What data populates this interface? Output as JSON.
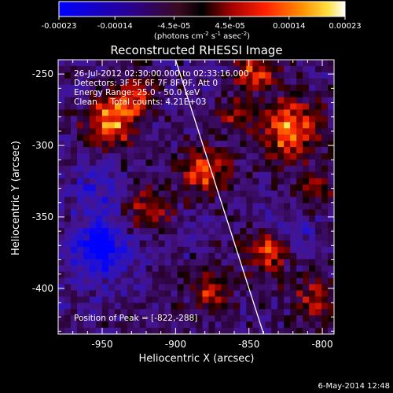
{
  "title": "Reconstructed RHESSI Image",
  "info_lines": [
    "26-Jul-2012 02:30:00.000 to 02:33:16.000",
    "Detectors: 3F 5F 6F 7F 8F 9F, Att 0",
    "Energy Range: 25.0 - 50.0 keV",
    "Clean     Total counts: 4.21E+03"
  ],
  "peak_label": "Position of Peak = [-822,-288]",
  "timestamp": "6-May-2014 12:48",
  "colorbar": {
    "tick_labels": [
      "-0.00023",
      "-0.00014",
      "-4.5e-05",
      "4.5e-05",
      "0.00014",
      "0.00023"
    ],
    "tick_values": [
      -0.00023,
      -0.00014,
      -4.5e-05,
      4.5e-05,
      0.00014,
      0.00023
    ],
    "unit_main": "(photons cm",
    "unit_exp1": "-2",
    "unit_mid1": " s",
    "unit_exp2": "-1",
    "unit_mid2": " asec",
    "unit_exp3": "-2",
    "unit_end": ")"
  },
  "colors": {
    "background": "#000000",
    "foreground": "#ffffff",
    "colorbar_low": "#0000ff",
    "colorbar_high": "#ffffff"
  },
  "chart_data": {
    "type": "heatmap",
    "title": "Reconstructed RHESSI Image",
    "xlabel": "Heliocentric X (arcsec)",
    "ylabel": "Heliocentric Y (arcsec)",
    "xlim": [
      -980,
      -792
    ],
    "ylim": [
      -432,
      -240
    ],
    "x_ticks": [
      -950,
      -900,
      -850,
      -800
    ],
    "x_tick_labels": [
      "-950",
      "-900",
      "-850",
      "-800"
    ],
    "y_ticks": [
      -400,
      -350,
      -300,
      -250
    ],
    "y_tick_labels": [
      "-400",
      "-350",
      "-300",
      "-250"
    ],
    "value_range": [
      -0.00023,
      0.00023
    ],
    "peak_position": [
      -822,
      -288
    ],
    "limb_line": [
      [
        -900,
        -240
      ],
      [
        -840,
        -432
      ]
    ],
    "sources": [
      {
        "x": -822,
        "y": -288,
        "amplitude": 0.00023,
        "sigma": 14
      },
      {
        "x": -845,
        "y": -248,
        "amplitude": 0.00017,
        "sigma": 10
      },
      {
        "x": -945,
        "y": -285,
        "amplitude": 0.00022,
        "sigma": 12
      },
      {
        "x": -930,
        "y": -265,
        "amplitude": 0.00016,
        "sigma": 10
      },
      {
        "x": -880,
        "y": -318,
        "amplitude": 0.00018,
        "sigma": 12
      },
      {
        "x": -918,
        "y": -345,
        "amplitude": 0.00016,
        "sigma": 10
      },
      {
        "x": -838,
        "y": -375,
        "amplitude": 0.00017,
        "sigma": 11
      },
      {
        "x": -875,
        "y": -402,
        "amplitude": 0.00015,
        "sigma": 10
      },
      {
        "x": -805,
        "y": -408,
        "amplitude": 0.00015,
        "sigma": 10
      },
      {
        "x": -805,
        "y": -330,
        "amplitude": 0.00012,
        "sigma": 9
      },
      {
        "x": -860,
        "y": -278,
        "amplitude": 0.00011,
        "sigma": 8
      },
      {
        "x": -952,
        "y": -373,
        "amplitude": -0.00018,
        "sigma": 14
      },
      {
        "x": -955,
        "y": -330,
        "amplitude": -8e-05,
        "sigma": 12
      },
      {
        "x": -818,
        "y": -360,
        "amplitude": -7e-05,
        "sigma": 10
      }
    ]
  }
}
